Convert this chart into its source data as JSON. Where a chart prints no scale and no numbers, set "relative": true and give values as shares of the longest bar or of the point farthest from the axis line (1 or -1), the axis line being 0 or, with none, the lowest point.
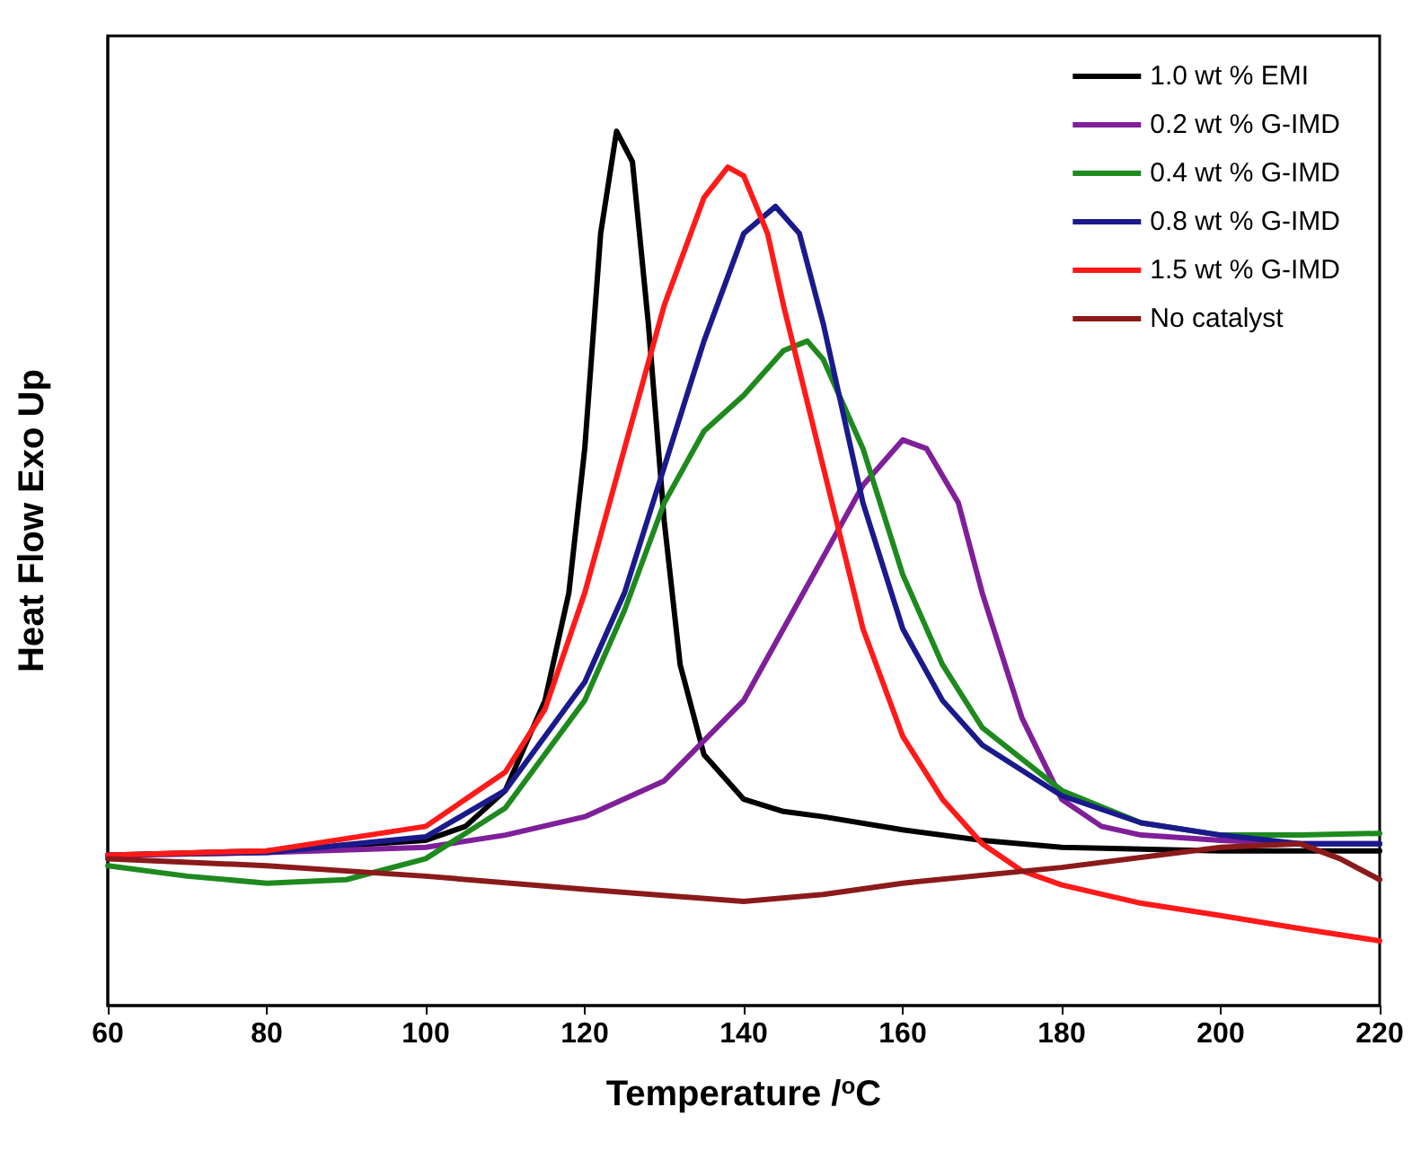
{
  "chart_data": {
    "type": "line",
    "relative": true,
    "xlabel": "Temperature /$^{o}$C",
    "ylabel": "Heat Flow Exo Up",
    "xlim": [
      60,
      220
    ],
    "xticks": [
      60,
      80,
      100,
      120,
      140,
      160,
      180,
      200,
      220
    ],
    "tick_labels": "x",
    "grid": false,
    "legend": "top right",
    "marker": "none",
    "line_style": "solid",
    "series": [
      {
        "name": "1.0 wt % EMI",
        "color": "#000000",
        "x": [
          60,
          80,
          100,
          105,
          110,
          115,
          118,
          120,
          122,
          124,
          126,
          128,
          130,
          132,
          135,
          140,
          145,
          150,
          160,
          170,
          180,
          200,
          220
        ],
        "values": [
          0.172,
          0.177,
          0.189,
          0.205,
          0.246,
          0.349,
          0.472,
          0.637,
          0.883,
          1,
          0.965,
          0.78,
          0.554,
          0.39,
          0.287,
          0.236,
          0.222,
          0.216,
          0.201,
          0.189,
          0.181,
          0.177,
          0.177
        ]
      },
      {
        "name": "0.2 wt % G-IMD",
        "color": "#7f1f9a",
        "x": [
          60,
          80,
          100,
          110,
          120,
          130,
          140,
          145,
          150,
          155,
          160,
          163,
          167,
          170,
          175,
          180,
          185,
          190,
          200,
          210,
          220
        ],
        "values": [
          0.172,
          0.175,
          0.181,
          0.195,
          0.216,
          0.257,
          0.349,
          0.431,
          0.513,
          0.595,
          0.647,
          0.637,
          0.575,
          0.472,
          0.329,
          0.236,
          0.205,
          0.195,
          0.189,
          0.185,
          0.185
        ]
      },
      {
        "name": "0.4 wt % G-IMD",
        "color": "#1e8a1e",
        "x": [
          60,
          70,
          80,
          90,
          100,
          110,
          120,
          125,
          130,
          135,
          140,
          145,
          148,
          150,
          155,
          160,
          165,
          170,
          180,
          190,
          200,
          210,
          220
        ],
        "values": [
          0.16,
          0.148,
          0.14,
          0.144,
          0.168,
          0.226,
          0.349,
          0.452,
          0.575,
          0.657,
          0.698,
          0.749,
          0.76,
          0.739,
          0.637,
          0.493,
          0.39,
          0.318,
          0.246,
          0.209,
          0.195,
          0.195,
          0.197
        ]
      },
      {
        "name": "0.8 wt % G-IMD",
        "color": "#1a1a8c",
        "x": [
          60,
          80,
          100,
          110,
          120,
          125,
          130,
          135,
          140,
          144,
          147,
          150,
          155,
          160,
          165,
          170,
          180,
          190,
          200,
          210,
          220
        ],
        "values": [
          0.172,
          0.175,
          0.193,
          0.246,
          0.37,
          0.472,
          0.616,
          0.76,
          0.883,
          0.914,
          0.883,
          0.78,
          0.575,
          0.431,
          0.349,
          0.298,
          0.24,
          0.209,
          0.195,
          0.185,
          0.185
        ]
      },
      {
        "name": "1.5 wt % G-IMD",
        "color": "#ff1a1a",
        "x": [
          60,
          80,
          100,
          110,
          115,
          120,
          125,
          130,
          135,
          138,
          140,
          143,
          145,
          150,
          155,
          160,
          165,
          170,
          175,
          180,
          190,
          200,
          210,
          220
        ],
        "values": [
          0.172,
          0.177,
          0.205,
          0.267,
          0.339,
          0.472,
          0.637,
          0.801,
          0.924,
          0.959,
          0.949,
          0.883,
          0.801,
          0.616,
          0.431,
          0.308,
          0.236,
          0.185,
          0.154,
          0.138,
          0.117,
          0.103,
          0.088,
          0.074
        ]
      },
      {
        "name": "No catalyst",
        "color": "#8b1a1a",
        "x": [
          60,
          80,
          100,
          120,
          140,
          150,
          160,
          180,
          200,
          210,
          215,
          220
        ],
        "values": [
          0.168,
          0.16,
          0.148,
          0.133,
          0.119,
          0.127,
          0.14,
          0.158,
          0.181,
          0.185,
          0.168,
          0.144
        ]
      }
    ]
  }
}
